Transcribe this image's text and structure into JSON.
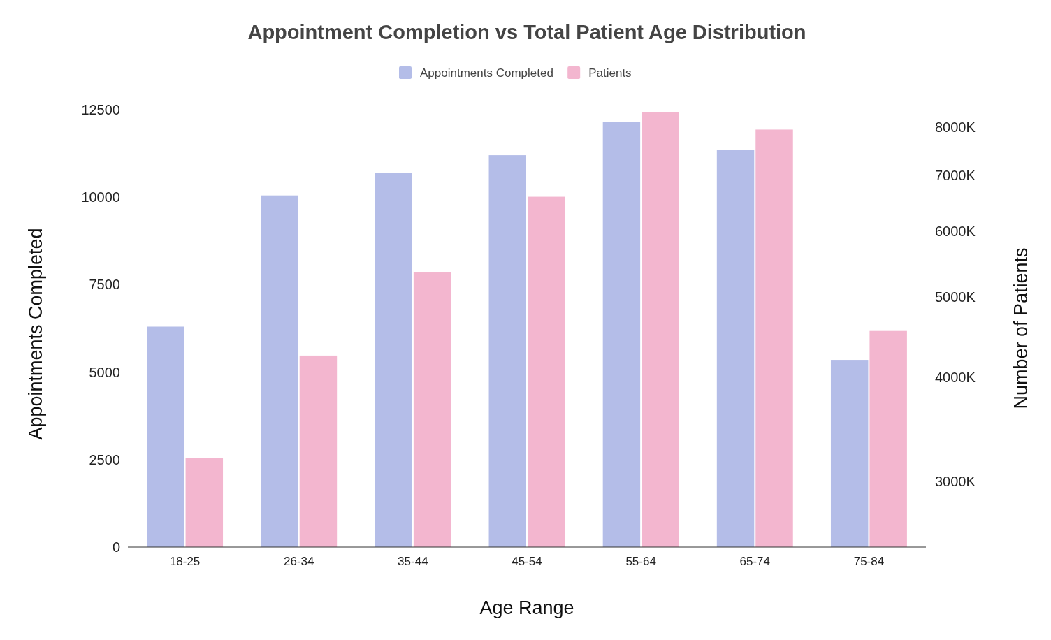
{
  "chart_data": {
    "type": "bar",
    "title": "Appointment Completion vs Total Patient Age Distribution",
    "xlabel": "Age Range",
    "ylabel": "Appointments Completed",
    "y2label": "Number of Patients",
    "categories": [
      "18-25",
      "26-34",
      "35-44",
      "45-54",
      "55-64",
      "65-74",
      "75-84"
    ],
    "series": [
      {
        "name": "Appointments Completed",
        "color": "#b4bde8",
        "values": [
          6300,
          10050,
          10700,
          11200,
          12150,
          11350,
          5350
        ]
      },
      {
        "name": "Patients",
        "color": "#f3b6cf",
        "axis": "y2",
        "values": [
          3200,
          4250,
          5350,
          6600,
          8350,
          7950,
          4550
        ]
      }
    ],
    "ylim": [
      0,
      12500
    ],
    "yticks": [
      0,
      2500,
      5000,
      7500,
      10000,
      12500
    ],
    "y2lim": [
      2500,
      8400
    ],
    "y2ticks": [
      {
        "value": 3000,
        "label": "3000K"
      },
      {
        "value": 4000,
        "label": "4000K"
      },
      {
        "value": 5000,
        "label": "5000K"
      },
      {
        "value": 6000,
        "label": "6000K"
      },
      {
        "value": 7000,
        "label": "7000K"
      },
      {
        "value": 8000,
        "label": "8000K"
      }
    ],
    "log": "y2",
    "grid": false,
    "legend": "top"
  }
}
